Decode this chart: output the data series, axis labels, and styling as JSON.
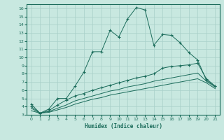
{
  "xlabel": "Humidex (Indice chaleur)",
  "background_color": "#c8e8e0",
  "grid_color": "#a8cfc8",
  "line_color": "#1a6b5a",
  "xlim": [
    -0.5,
    21.5
  ],
  "ylim": [
    3,
    16.5
  ],
  "yticks": [
    3,
    4,
    5,
    6,
    7,
    8,
    9,
    10,
    11,
    12,
    13,
    14,
    15,
    16
  ],
  "xticks": [
    0,
    1,
    2,
    3,
    4,
    5,
    6,
    7,
    8,
    9,
    10,
    11,
    12,
    13,
    14,
    15,
    16,
    17,
    18,
    19,
    20,
    21
  ],
  "series": [
    {
      "x": [
        0,
        1,
        2,
        3,
        4,
        5,
        6,
        7,
        8,
        9,
        10,
        11,
        12,
        13,
        14,
        15,
        16,
        17,
        18,
        19,
        20,
        21
      ],
      "y": [
        4.3,
        3.2,
        3.7,
        5.0,
        5.0,
        6.5,
        8.2,
        10.7,
        10.7,
        13.3,
        12.5,
        14.7,
        16.1,
        15.8,
        11.5,
        12.8,
        12.7,
        11.8,
        10.6,
        9.7,
        7.2,
        6.5
      ],
      "marker": "+"
    },
    {
      "x": [
        0,
        1,
        2,
        3,
        4,
        5,
        6,
        7,
        8,
        9,
        10,
        11,
        12,
        13,
        14,
        15,
        16,
        17,
        18,
        19,
        20,
        21
      ],
      "y": [
        4.0,
        3.2,
        3.5,
        4.2,
        4.8,
        5.3,
        5.6,
        6.0,
        6.3,
        6.6,
        6.9,
        7.2,
        7.5,
        7.7,
        8.0,
        8.7,
        8.9,
        9.0,
        9.1,
        9.3,
        7.4,
        6.5
      ],
      "marker": "+"
    },
    {
      "x": [
        0,
        1,
        2,
        3,
        4,
        5,
        6,
        7,
        8,
        9,
        10,
        11,
        12,
        13,
        14,
        15,
        16,
        17,
        18,
        19,
        20,
        21
      ],
      "y": [
        3.8,
        3.2,
        3.4,
        3.8,
        4.2,
        4.7,
        5.0,
        5.3,
        5.6,
        5.9,
        6.1,
        6.4,
        6.6,
        6.8,
        7.1,
        7.3,
        7.5,
        7.7,
        7.9,
        8.1,
        7.1,
        6.4
      ],
      "marker": null
    },
    {
      "x": [
        0,
        1,
        2,
        3,
        4,
        5,
        6,
        7,
        8,
        9,
        10,
        11,
        12,
        13,
        14,
        15,
        16,
        17,
        18,
        19,
        20,
        21
      ],
      "y": [
        3.5,
        3.2,
        3.3,
        3.6,
        3.9,
        4.3,
        4.6,
        4.9,
        5.1,
        5.4,
        5.6,
        5.8,
        6.0,
        6.2,
        6.4,
        6.6,
        6.8,
        7.0,
        7.2,
        7.4,
        6.9,
        6.2
      ],
      "marker": null
    }
  ]
}
